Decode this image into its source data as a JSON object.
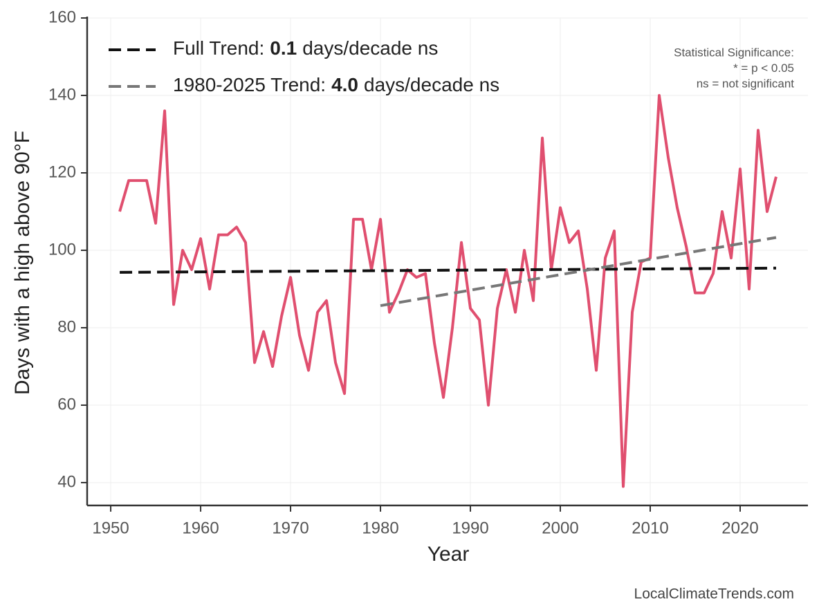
{
  "chart_data": {
    "type": "line",
    "ylabel": "Days with a high above 90°F",
    "xlabel": "Year",
    "xlim": [
      1947.38,
      2027.54
    ],
    "ylim": [
      34.1,
      160
    ],
    "xticks": [
      1950,
      1960,
      1970,
      1980,
      1990,
      2000,
      2010,
      2020
    ],
    "yticks": [
      40,
      60,
      80,
      100,
      120,
      140,
      160
    ],
    "grid": true,
    "series": [
      {
        "name": "Days with a high above 90°F",
        "color": "#e04f6f",
        "style": "solid",
        "x": [
          1951,
          1952,
          1953,
          1954,
          1955,
          1956,
          1957,
          1958,
          1959,
          1960,
          1961,
          1962,
          1963,
          1964,
          1965,
          1966,
          1967,
          1968,
          1969,
          1970,
          1971,
          1972,
          1973,
          1974,
          1975,
          1976,
          1977,
          1978,
          1979,
          1980,
          1981,
          1982,
          1983,
          1984,
          1985,
          1986,
          1987,
          1988,
          1989,
          1990,
          1991,
          1992,
          1993,
          1994,
          1995,
          1996,
          1997,
          1998,
          1999,
          2000,
          2001,
          2002,
          2003,
          2004,
          2005,
          2006,
          2007,
          2008,
          2009,
          2010,
          2011,
          2012,
          2013,
          2014,
          2015,
          2016,
          2017,
          2018,
          2019,
          2020,
          2021,
          2022,
          2023,
          2024
        ],
        "values": [
          110,
          118,
          118,
          118,
          107,
          136,
          86,
          100,
          95,
          103,
          90,
          104,
          104,
          106,
          102,
          71,
          79,
          70,
          83,
          93,
          78,
          69,
          84,
          87,
          71,
          63,
          108,
          108,
          95,
          108,
          84,
          89,
          95,
          93,
          94,
          76,
          62,
          80,
          102,
          85,
          82,
          60,
          85,
          95,
          84,
          100,
          87,
          129,
          95,
          111,
          102,
          105,
          90,
          69,
          98,
          105,
          39,
          84,
          97,
          98,
          140,
          124,
          111,
          101,
          89,
          89,
          94,
          110,
          98,
          121,
          90,
          131,
          110,
          119
        ]
      },
      {
        "name_parts": [
          "Full Trend:",
          "0.1",
          "days/decade ns"
        ],
        "color": "#111111",
        "style": "dashed",
        "x": [
          1951,
          2024
        ],
        "values": [
          94.3,
          95.4
        ]
      },
      {
        "name_parts": [
          "1980-2025 Trend:",
          "4.0",
          "days/decade ns"
        ],
        "color": "#777777",
        "style": "dashed",
        "x": [
          1980,
          2024
        ],
        "values": [
          85.7,
          103.3
        ]
      }
    ],
    "significance_note": [
      "Statistical Significance:",
      "* = p < 0.05",
      "ns = not significant"
    ],
    "watermark": "LocalClimateTrends.com"
  }
}
